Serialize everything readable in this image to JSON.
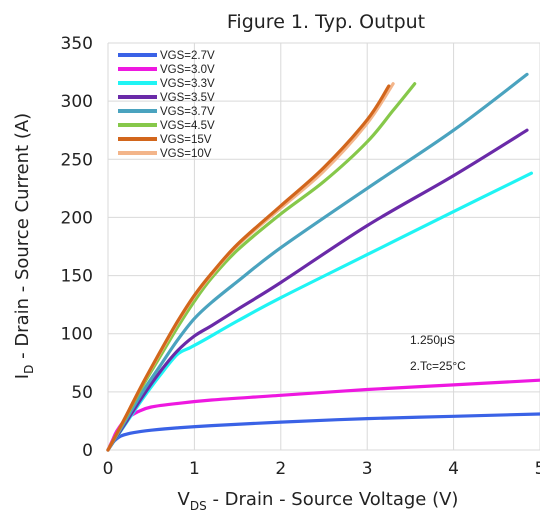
{
  "chart_data": {
    "type": "line",
    "title": "Figure 1. Typ. Output",
    "xlabel_main": "V",
    "xlabel_sub": "DS",
    "xlabel_rest": " - Drain - Source Voltage  (V)",
    "ylabel_main": "I",
    "ylabel_sub": "D",
    "ylabel_rest": " - Drain - Source Current (A)",
    "xlim": [
      0,
      5
    ],
    "ylim": [
      0,
      350
    ],
    "xticks": [
      0,
      1,
      2,
      3,
      4,
      5
    ],
    "yticks": [
      0,
      50,
      100,
      150,
      200,
      250,
      300,
      350
    ],
    "grid": true,
    "legend_position": "top-left",
    "annotations": [
      "1.250μS",
      "2.Tc=25°C"
    ],
    "series": [
      {
        "name": "VGS=2.7V",
        "color": "#3a62e6",
        "x": [
          0,
          0.05,
          0.15,
          0.3,
          0.5,
          0.8,
          1.2,
          2,
          3,
          4,
          5
        ],
        "y": [
          0,
          6,
          12,
          15,
          17,
          19,
          21,
          24,
          27,
          29,
          31
        ]
      },
      {
        "name": "VGS=3.0V",
        "color": "#ee18e0",
        "x": [
          0,
          0.05,
          0.1,
          0.2,
          0.35,
          0.5,
          0.8,
          1.2,
          2,
          3,
          4,
          5
        ],
        "y": [
          0,
          8,
          16,
          26,
          33,
          37,
          40,
          43,
          47,
          52,
          56,
          60
        ]
      },
      {
        "name": "VGS=3.3V",
        "color": "#1ff4f4",
        "x": [
          0,
          0.2,
          0.4,
          0.6,
          0.8,
          0.95,
          1.1,
          1.5,
          2,
          3,
          4,
          4.9
        ],
        "y": [
          0,
          22,
          44,
          64,
          82,
          88,
          94,
          111,
          131,
          168,
          205,
          238
        ]
      },
      {
        "name": "VGS=3.5V",
        "color": "#6a2aa8",
        "x": [
          0,
          0.2,
          0.4,
          0.6,
          0.8,
          1,
          1.2,
          1.5,
          2,
          3,
          4,
          4.85
        ],
        "y": [
          0,
          23,
          46,
          67,
          85,
          98,
          107,
          121,
          144,
          193,
          236,
          275
        ]
      },
      {
        "name": "VGS=3.7V",
        "color": "#4aa3bf",
        "x": [
          0,
          0.2,
          0.4,
          0.6,
          0.8,
          1,
          1.2,
          1.5,
          2,
          3,
          4,
          4.85
        ],
        "y": [
          0,
          25,
          50,
          72,
          94,
          113,
          127,
          145,
          174,
          225,
          275,
          323
        ]
      },
      {
        "name": "VGS=4.5V",
        "color": "#86c84a",
        "x": [
          0,
          0.2,
          0.4,
          0.6,
          0.8,
          1,
          1.2,
          1.5,
          2,
          2.5,
          3,
          3.3,
          3.55
        ],
        "y": [
          0,
          27,
          55,
          80,
          105,
          128,
          148,
          172,
          203,
          231,
          265,
          292,
          315
        ]
      },
      {
        "name": "VGS=15V",
        "color": "#d2661c",
        "x": [
          0,
          0.2,
          0.4,
          0.6,
          0.8,
          1,
          1.2,
          1.5,
          2,
          2.5,
          3,
          3.25
        ],
        "y": [
          0,
          28,
          57,
          84,
          110,
          133,
          152,
          177,
          210,
          243,
          284,
          313
        ]
      },
      {
        "name": "VGS=10V",
        "color": "#f3b58a",
        "x": [
          0,
          0.2,
          0.4,
          0.6,
          0.8,
          1,
          1.2,
          1.5,
          2,
          2.5,
          3,
          3.3
        ],
        "y": [
          0,
          28,
          57,
          83,
          109,
          132,
          151,
          176,
          208,
          240,
          281,
          315
        ]
      }
    ]
  }
}
